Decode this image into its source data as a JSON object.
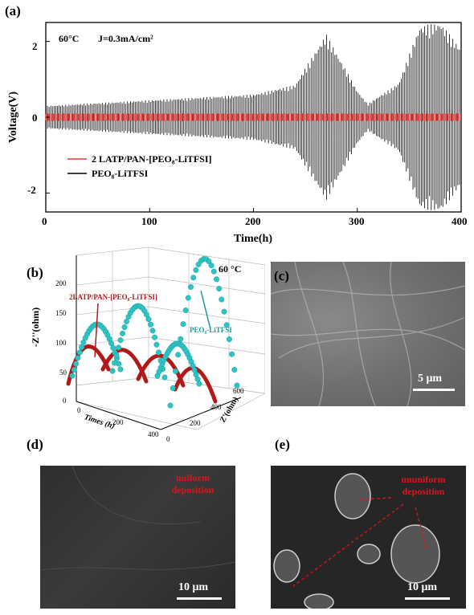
{
  "panels": {
    "a": {
      "label": "(a)",
      "condition_temp": "60°C",
      "condition_current": "J=0.3mA/cm²",
      "chart_data": {
        "type": "line",
        "xlabel": "Time(h)",
        "ylabel": "Voltage(V)",
        "xlim": [
          0,
          400
        ],
        "ylim": [
          -2.5,
          2.5
        ],
        "xticks": [
          "0",
          "100",
          "200",
          "300",
          "400"
        ],
        "yticks": [
          "2",
          "0",
          "-2"
        ],
        "series": [
          {
            "name": "2 LATP/PAN-[PEO₈-LiTFSI]",
            "color": "#e53935",
            "x": [
              0,
              100,
              200,
              300,
              400
            ],
            "amplitude": [
              0.1,
              0.1,
              0.1,
              0.1,
              0.1
            ]
          },
          {
            "name": "PEO₈-LiTFSI",
            "color": "#000000",
            "x": [
              0,
              100,
              200,
              240,
              270,
              300,
              310,
              340,
              360,
              380,
              400
            ],
            "amplitude": [
              0.3,
              0.45,
              0.6,
              0.85,
              2.2,
              0.7,
              0.35,
              0.9,
              2.4,
              2.5,
              1.8
            ]
          }
        ],
        "legend_position": "bottom-left"
      }
    },
    "b": {
      "label": "(b)",
      "temp": "60 °C",
      "series_labels": [
        "2LATP/PAN-[PEO₈-LiTFSI]",
        "PEO₈-LiTFSI"
      ],
      "series_colors": [
        "#b01a1a",
        "#2cc4c4"
      ],
      "z_axis_label": "-Z''(ohm)",
      "x_axis_label": "Times (h)",
      "y_axis_label": "Z'(ohm)",
      "z_ticks": [
        "200",
        "150",
        "100",
        "50",
        "0"
      ],
      "time_ticks": [
        "0",
        "200",
        "400"
      ],
      "zre_ticks": [
        "0",
        "200",
        "400",
        "600"
      ]
    },
    "c": {
      "label": "(c)",
      "scale": "5 μm"
    },
    "d": {
      "label": "(d)",
      "scale": "10 μm",
      "annotation": "uniform deposition"
    },
    "e": {
      "label": "(e)",
      "scale": "10 μm",
      "annotation": "ununiform deposition"
    }
  }
}
